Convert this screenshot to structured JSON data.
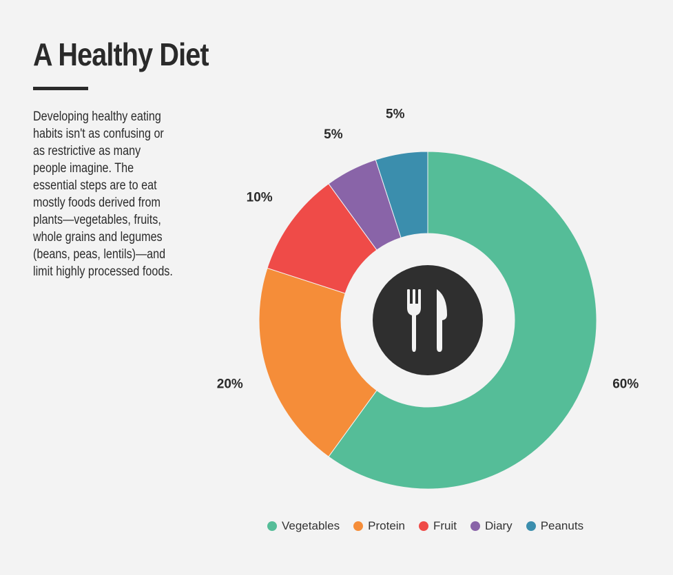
{
  "title": "A Healthy Diet",
  "description": [
    "Developing healthy eating",
    "habits isn't as confusing or",
    "as restrictive as many",
    "people imagine. The",
    "essential steps are to eat",
    "mostly foods derived from",
    "plants—vegetables, fruits,",
    "whole grains and legumes",
    "(beans, peas, lentils)—and",
    "limit highly processed foods."
  ],
  "center_icon": "fork-knife-icon",
  "colors": {
    "background": "#f3f3f3",
    "center_circle": "#2f2f2f",
    "icon": "#f3f3f3"
  },
  "chart_data": {
    "type": "pie",
    "style": "donut",
    "categories": [
      "Vegetables",
      "Protein",
      "Fruit",
      "Diary",
      "Peanuts"
    ],
    "values": [
      60,
      20,
      10,
      5,
      5
    ],
    "value_labels": [
      "60%",
      "20%",
      "10%",
      "5%",
      "5%"
    ],
    "colors": [
      "#55bd98",
      "#f58d39",
      "#ef4b48",
      "#8964a8",
      "#3b8ead"
    ],
    "legend_position": "bottom-center"
  }
}
